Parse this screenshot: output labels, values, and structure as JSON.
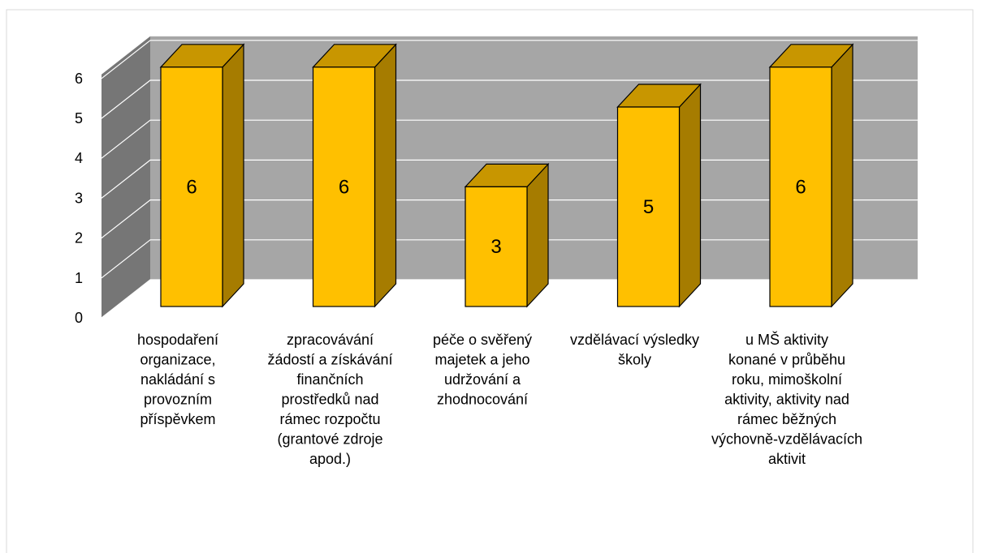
{
  "chart_data": {
    "type": "bar3d",
    "categories": [
      "hospodaření organizace, nakládání s provozním příspěvkem",
      "zpracovávání žádostí a získávání finančních prostředků nad rámec rozpočtu (grantové zdroje apod.)",
      "péče o svěřený majetek a jeho udržování a zhodnocování",
      "vzdělávací výsledky školy",
      "u MŠ aktivity konané v průběhu roku, mimoškolní aktivity, aktivity nad rámec běžných výchovně-vzdělávacích aktivit"
    ],
    "values": [
      6,
      6,
      3,
      5,
      6
    ],
    "color": "#ffc000",
    "ylim": [
      0,
      6
    ],
    "yticks": [
      0,
      1,
      2,
      3,
      4,
      5,
      6
    ],
    "grid": true
  }
}
